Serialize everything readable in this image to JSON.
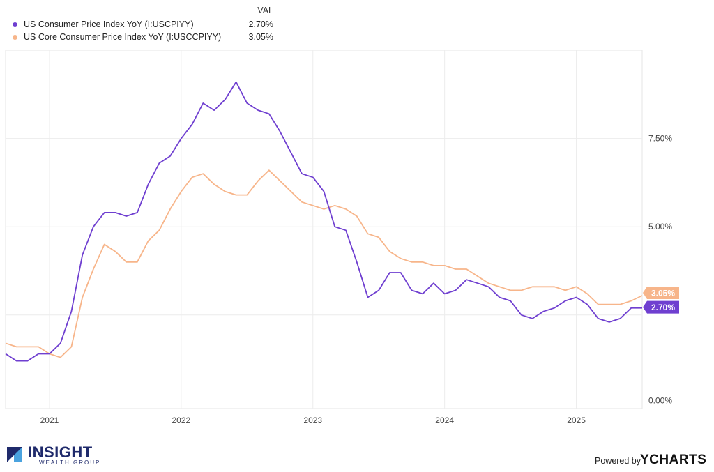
{
  "legend": {
    "header": "VAL",
    "items": [
      {
        "name": "US Consumer Price Index YoY (I:USCPIYY)",
        "value": "2.70%",
        "color": "#6f3fd0"
      },
      {
        "name": "US Core Consumer Price Index YoY (I:USCCPIYY)",
        "value": "3.05%",
        "color": "#f7b58a"
      }
    ]
  },
  "chart_data": {
    "type": "line",
    "x_start": "2020-09",
    "x_end": "2025-07",
    "x_ticks": [
      "2021",
      "2022",
      "2023",
      "2024",
      "2025"
    ],
    "y_ticks": [
      "0.00%",
      "5.00%",
      "7.50%"
    ],
    "y_tick_values": [
      0,
      5,
      7.5
    ],
    "ylim": [
      -0.15,
      10
    ],
    "grid": true,
    "series": [
      {
        "name": "US Consumer Price Index YoY (I:USCPIYY)",
        "color": "#6f3fd0",
        "end_label": "2.70%",
        "x": [
          "2020-09",
          "2020-10",
          "2020-11",
          "2020-12",
          "2021-01",
          "2021-02",
          "2021-03",
          "2021-04",
          "2021-05",
          "2021-06",
          "2021-07",
          "2021-08",
          "2021-09",
          "2021-10",
          "2021-11",
          "2021-12",
          "2022-01",
          "2022-02",
          "2022-03",
          "2022-04",
          "2022-05",
          "2022-06",
          "2022-07",
          "2022-08",
          "2022-09",
          "2022-10",
          "2022-11",
          "2022-12",
          "2023-01",
          "2023-02",
          "2023-03",
          "2023-04",
          "2023-05",
          "2023-06",
          "2023-07",
          "2023-08",
          "2023-09",
          "2023-10",
          "2023-11",
          "2023-12",
          "2024-01",
          "2024-02",
          "2024-03",
          "2024-04",
          "2024-05",
          "2024-06",
          "2024-07",
          "2024-08",
          "2024-09",
          "2024-10",
          "2024-11",
          "2024-12",
          "2025-01",
          "2025-02",
          "2025-03",
          "2025-04",
          "2025-05",
          "2025-06",
          "2025-07"
        ],
        "values": [
          1.4,
          1.2,
          1.2,
          1.4,
          1.4,
          1.7,
          2.6,
          4.2,
          5.0,
          5.4,
          5.4,
          5.3,
          5.4,
          6.2,
          6.8,
          7.0,
          7.5,
          7.9,
          8.5,
          8.3,
          8.6,
          9.1,
          8.5,
          8.3,
          8.2,
          7.7,
          7.1,
          6.5,
          6.4,
          6.0,
          5.0,
          4.9,
          4.0,
          3.0,
          3.2,
          3.7,
          3.7,
          3.2,
          3.1,
          3.4,
          3.1,
          3.2,
          3.5,
          3.4,
          3.3,
          3.0,
          2.9,
          2.5,
          2.4,
          2.6,
          2.7,
          2.9,
          3.0,
          2.8,
          2.4,
          2.3,
          2.4,
          2.7,
          2.7
        ]
      },
      {
        "name": "US Core Consumer Price Index YoY (I:USCCPIYY)",
        "color": "#f7b58a",
        "end_label": "3.05%",
        "x": [
          "2020-09",
          "2020-10",
          "2020-11",
          "2020-12",
          "2021-01",
          "2021-02",
          "2021-03",
          "2021-04",
          "2021-05",
          "2021-06",
          "2021-07",
          "2021-08",
          "2021-09",
          "2021-10",
          "2021-11",
          "2021-12",
          "2022-01",
          "2022-02",
          "2022-03",
          "2022-04",
          "2022-05",
          "2022-06",
          "2022-07",
          "2022-08",
          "2022-09",
          "2022-10",
          "2022-11",
          "2022-12",
          "2023-01",
          "2023-02",
          "2023-03",
          "2023-04",
          "2023-05",
          "2023-06",
          "2023-07",
          "2023-08",
          "2023-09",
          "2023-10",
          "2023-11",
          "2023-12",
          "2024-01",
          "2024-02",
          "2024-03",
          "2024-04",
          "2024-05",
          "2024-06",
          "2024-07",
          "2024-08",
          "2024-09",
          "2024-10",
          "2024-11",
          "2024-12",
          "2025-01",
          "2025-02",
          "2025-03",
          "2025-04",
          "2025-05",
          "2025-06",
          "2025-07"
        ],
        "values": [
          1.7,
          1.6,
          1.6,
          1.6,
          1.4,
          1.3,
          1.6,
          3.0,
          3.8,
          4.5,
          4.3,
          4.0,
          4.0,
          4.6,
          4.9,
          5.5,
          6.0,
          6.4,
          6.5,
          6.2,
          6.0,
          5.9,
          5.9,
          6.3,
          6.6,
          6.3,
          6.0,
          5.7,
          5.6,
          5.5,
          5.6,
          5.5,
          5.3,
          4.8,
          4.7,
          4.3,
          4.1,
          4.0,
          4.0,
          3.9,
          3.9,
          3.8,
          3.8,
          3.6,
          3.4,
          3.3,
          3.2,
          3.2,
          3.3,
          3.3,
          3.3,
          3.2,
          3.3,
          3.1,
          2.8,
          2.8,
          2.8,
          2.9,
          3.05
        ]
      }
    ]
  },
  "brand": {
    "word": "INSIGHT",
    "sub": "WEALTH GROUP"
  },
  "footer": {
    "powered": "Powered by",
    "ycharts": "YCHARTS"
  }
}
